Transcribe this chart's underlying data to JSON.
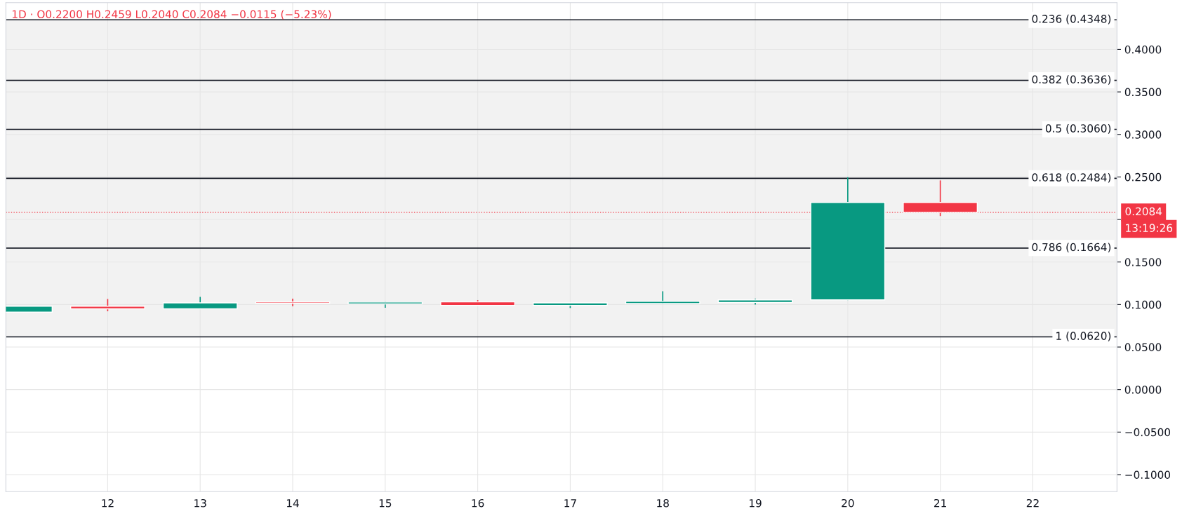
{
  "chart_data": {
    "type": "candlestick",
    "title": "1D · O0.2200 H0.2459 L0.2040 C0.2084 −0.0115 (−5.23%)",
    "x": [
      11,
      12,
      13,
      14,
      15,
      16,
      17,
      18,
      19,
      20,
      21
    ],
    "ohlc": [
      [
        0.091,
        0.098,
        0.091,
        0.098
      ],
      [
        0.098,
        0.1065,
        0.092,
        0.095
      ],
      [
        0.095,
        0.109,
        0.095,
        0.102
      ],
      [
        0.103,
        0.1068,
        0.098,
        0.1014
      ],
      [
        0.1007,
        0.1035,
        0.0962,
        0.1029
      ],
      [
        0.1031,
        0.1052,
        0.099,
        0.099
      ],
      [
        0.099,
        0.1019,
        0.0959,
        0.1019
      ],
      [
        0.1011,
        0.1156,
        0.1003,
        0.1037
      ],
      [
        0.1025,
        0.1068,
        0.0999,
        0.1054
      ],
      [
        0.1054,
        0.2497,
        0.105,
        0.22
      ],
      [
        0.22,
        0.2459,
        0.204,
        0.2084
      ]
    ],
    "colors": [
      "#089981",
      "#f23645",
      "#089981",
      "#f23645",
      "#089981",
      "#f23645",
      "#089981",
      "#089981",
      "#089981",
      "#089981",
      "#f23645"
    ],
    "xlim": [
      10.9,
      22.91
    ],
    "xticks": [
      12,
      13,
      14,
      15,
      16,
      17,
      18,
      19,
      20,
      21,
      22
    ],
    "ylim": [
      -0.12,
      0.455
    ],
    "yticks": [
      {
        "value": -0.1,
        "label": "−0.1000"
      },
      {
        "value": -0.05,
        "label": "−0.0500"
      },
      {
        "value": 0,
        "label": "0.0000"
      },
      {
        "value": 0.05,
        "label": "0.0500"
      },
      {
        "value": 0.1,
        "label": "0.1000"
      },
      {
        "value": 0.15,
        "label": "0.1500"
      },
      {
        "value": 0.2,
        "label": null
      },
      {
        "value": 0.25,
        "label": "0.2500"
      },
      {
        "value": 0.3,
        "label": "0.3000"
      },
      {
        "value": 0.35,
        "label": "0.3500"
      },
      {
        "value": 0.4,
        "label": "0.4000"
      }
    ],
    "ref_lines": [
      {
        "axis": "y",
        "value": 0.4348,
        "label": "0.236 (0.4348)",
        "color": "#131722"
      },
      {
        "axis": "y",
        "value": 0.3636,
        "label": "0.382 (0.3636)",
        "color": "#131722"
      },
      {
        "axis": "y",
        "value": 0.306,
        "label": "0.5 (0.3060)",
        "color": "#131722"
      },
      {
        "axis": "y",
        "value": 0.2484,
        "label": "0.618 (0.2484)",
        "color": "#131722"
      },
      {
        "axis": "y",
        "value": 0.1664,
        "label": "0.786 (0.1664)",
        "color": "#131722"
      },
      {
        "axis": "y",
        "value": 0.062,
        "label": "1 (0.0620)",
        "color": "#131722"
      },
      {
        "axis": "y",
        "value": 0.2084,
        "label": "0.2084",
        "color": "#f23645",
        "line_style": "dotted"
      }
    ],
    "bands": [
      {
        "axis": "y",
        "from": 0.062,
        "to": 0.4348,
        "color": "#f2f2f2"
      }
    ],
    "annotations": [
      "13:19:26"
    ],
    "grid": true
  }
}
